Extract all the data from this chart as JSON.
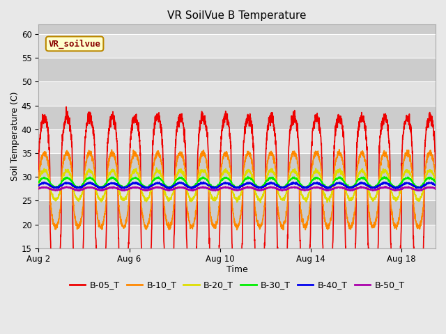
{
  "title": "VR SoilVue B Temperature",
  "xlabel": "Time",
  "ylabel": "Soil Temperature (C)",
  "ylim": [
    15,
    62
  ],
  "yticks": [
    15,
    20,
    25,
    30,
    35,
    40,
    45,
    50,
    55,
    60
  ],
  "x_start_day": 2,
  "x_total_days": 17.5,
  "xtick_days": [
    2,
    6,
    10,
    14,
    18
  ],
  "xtick_labels": [
    "Aug 2",
    "Aug 6",
    "Aug 10",
    "Aug 14",
    "Aug 18"
  ],
  "series_order": [
    "B-05_T",
    "B-10_T",
    "B-20_T",
    "B-30_T",
    "B-40_T",
    "B-50_T"
  ],
  "series": {
    "B-05_T": {
      "color": "#EE0000",
      "base": 27.5,
      "amp": 15.0,
      "trough_shift": -5.0,
      "noise": 0.6,
      "lw": 1.2,
      "sharpness": 3.0
    },
    "B-10_T": {
      "color": "#FF8800",
      "base": 28.0,
      "amp": 7.0,
      "trough_shift": -1.5,
      "noise": 0.3,
      "lw": 1.2,
      "sharpness": 2.0
    },
    "B-20_T": {
      "color": "#DDDD00",
      "base": 28.5,
      "amp": 2.8,
      "trough_shift": -0.5,
      "noise": 0.2,
      "lw": 1.2,
      "sharpness": 1.5
    },
    "B-30_T": {
      "color": "#00EE00",
      "base": 28.8,
      "amp": 1.0,
      "trough_shift": 0.0,
      "noise": 0.1,
      "lw": 1.2,
      "sharpness": 1.2
    },
    "B-40_T": {
      "color": "#0000EE",
      "base": 28.2,
      "amp": 0.5,
      "trough_shift": 0.0,
      "noise": 0.08,
      "lw": 1.4,
      "sharpness": 1.0
    },
    "B-50_T": {
      "color": "#AA00AA",
      "base": 27.5,
      "amp": 0.3,
      "trough_shift": 0.0,
      "noise": 0.06,
      "lw": 1.4,
      "sharpness": 1.0
    }
  },
  "annotation_text": "VR_soilvue",
  "annotation_facecolor": "#FFFFCC",
  "annotation_edgecolor": "#BB8800",
  "fig_facecolor": "#E8E8E8",
  "plot_facecolor": "#CCCCCC",
  "band_color": "#DDDDDD",
  "title_fontsize": 11,
  "label_fontsize": 9,
  "tick_fontsize": 8.5,
  "legend_fontsize": 9
}
